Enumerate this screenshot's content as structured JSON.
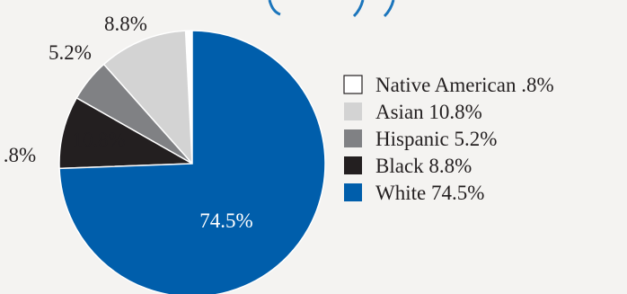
{
  "chart_data": {
    "type": "pie",
    "categories": [
      "Native American",
      "Asian",
      "Hispanic",
      "Black",
      "White"
    ],
    "values": [
      0.8,
      10.8,
      5.2,
      8.8,
      74.5
    ],
    "data_labels": [
      ".8%",
      "10.8%",
      "5.2%",
      "8.8%",
      "74.5%"
    ],
    "legend": [
      {
        "name": "Native American",
        "value": ".8%"
      },
      {
        "name": "Asian",
        "value": "10.8%"
      },
      {
        "name": "Hispanic",
        "value": "5.2%"
      },
      {
        "name": "Black",
        "value": "8.8%"
      },
      {
        "name": "White",
        "value": "74.5%"
      }
    ],
    "colors": [
      "#ffffff",
      "#d3d3d3",
      "#808184",
      "#231f20",
      "#005eab"
    ],
    "legend_position": "right",
    "title": ""
  }
}
